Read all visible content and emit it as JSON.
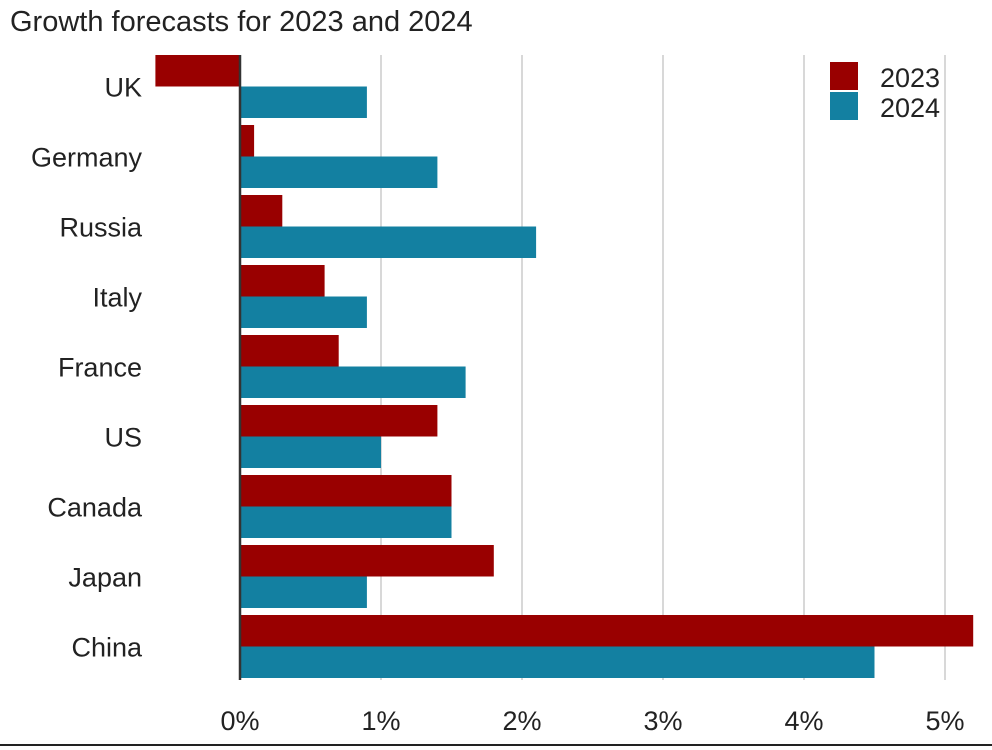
{
  "chart_data": {
    "type": "bar",
    "orientation": "horizontal",
    "title": "Growth forecasts for 2023 and 2024",
    "categories": [
      "UK",
      "Germany",
      "Russia",
      "Italy",
      "France",
      "US",
      "Canada",
      "Japan",
      "China"
    ],
    "series": [
      {
        "name": "2023",
        "color": "#990000",
        "values": [
          -0.6,
          0.1,
          0.3,
          0.6,
          0.7,
          1.4,
          1.5,
          1.8,
          5.2
        ]
      },
      {
        "name": "2024",
        "color": "#1380A1",
        "values": [
          0.9,
          1.4,
          2.1,
          0.9,
          1.6,
          1.0,
          1.5,
          0.9,
          4.5
        ]
      }
    ],
    "xticks": [
      0,
      1,
      2,
      3,
      4,
      5
    ],
    "xtick_labels": [
      "0%",
      "1%",
      "2%",
      "3%",
      "4%",
      "5%"
    ],
    "xlim": [
      -0.6,
      5.2
    ],
    "grid": "vertical",
    "legend": "top-right"
  }
}
